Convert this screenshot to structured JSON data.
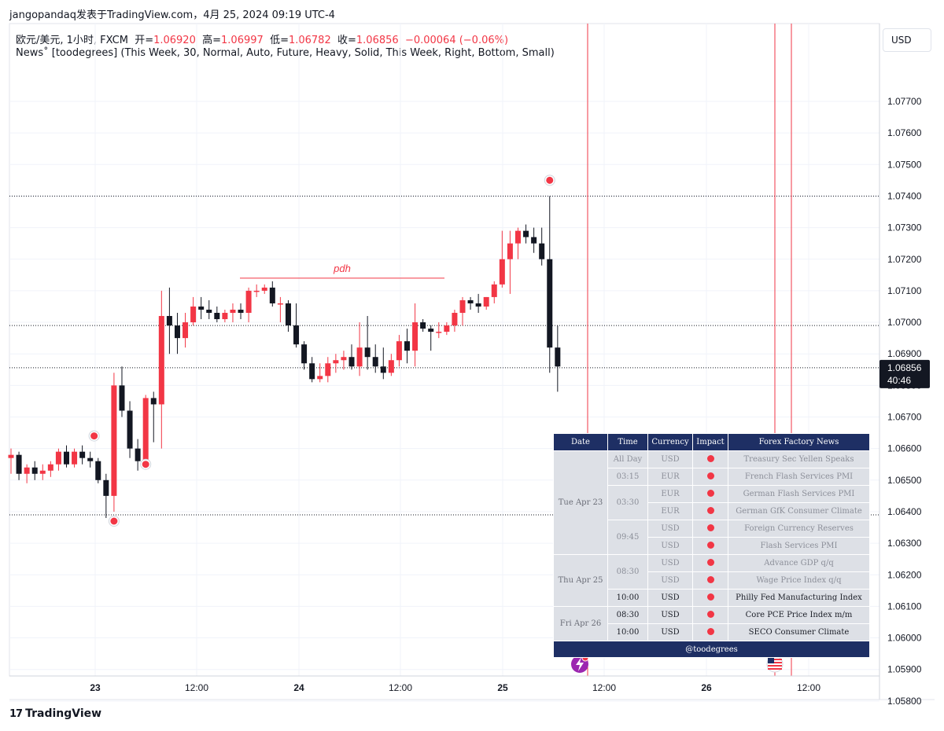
{
  "header": {
    "publisher_line": "jangopandaq发表于TradingView.com，4月 25, 2024 09:19 UTC-4"
  },
  "legend": {
    "symbol": "欧元/美元, 1小时, FXCM",
    "open_label": "开=",
    "open": "1.06920",
    "high_label": "高=",
    "high": "1.06997",
    "low_label": "低=",
    "low": "1.06782",
    "close_label": "收=",
    "close": "1.06856",
    "change": "−0.00064 (−0.06%)",
    "indicator": "News˚ [toodegrees] (This Week, 30, Normal, Auto, Future, Heavy, Solid, This Week, Right, Bottom, Small)"
  },
  "currency_button": "USD",
  "price_tag": {
    "price": "1.06856",
    "countdown": "40:46"
  },
  "annotation": {
    "pdh_label": "pdh"
  },
  "colors": {
    "up": "#f23645",
    "down": "#131722",
    "event_line": "#f23645",
    "table_header": "#1e2f64",
    "table_cell": "#dde0e6"
  },
  "chart_data": {
    "type": "candlestick",
    "title": "欧元/美元, 1小时, FXCM",
    "ylim": [
      1.058,
      1.078
    ],
    "y_ticks": [
      "1.07700",
      "1.07600",
      "1.07500",
      "1.07400",
      "1.07300",
      "1.07200",
      "1.07100",
      "1.07000",
      "1.06900",
      "1.06800",
      "1.06700",
      "1.06600",
      "1.06500",
      "1.06400",
      "1.06300",
      "1.06200",
      "1.06100",
      "1.06000",
      "1.05900",
      "1.05800"
    ],
    "x_ticks": [
      "23",
      "12:00",
      "24",
      "12:00",
      "25",
      "12:00",
      "26",
      "12:00"
    ],
    "candles": [
      {
        "o": 1.0657,
        "h": 1.066,
        "l": 1.0652,
        "c": 1.0658
      },
      {
        "o": 1.0658,
        "h": 1.0659,
        "l": 1.065,
        "c": 1.0652
      },
      {
        "o": 1.0652,
        "h": 1.0655,
        "l": 1.0649,
        "c": 1.0654
      },
      {
        "o": 1.0654,
        "h": 1.0656,
        "l": 1.065,
        "c": 1.0652
      },
      {
        "o": 1.0652,
        "h": 1.0655,
        "l": 1.065,
        "c": 1.0653
      },
      {
        "o": 1.0653,
        "h": 1.0656,
        "l": 1.0651,
        "c": 1.0655
      },
      {
        "o": 1.0655,
        "h": 1.066,
        "l": 1.0653,
        "c": 1.0659
      },
      {
        "o": 1.0659,
        "h": 1.0661,
        "l": 1.0654,
        "c": 1.0655
      },
      {
        "o": 1.0655,
        "h": 1.066,
        "l": 1.0654,
        "c": 1.0659
      },
      {
        "o": 1.0659,
        "h": 1.0661,
        "l": 1.0655,
        "c": 1.0657
      },
      {
        "o": 1.0657,
        "h": 1.0659,
        "l": 1.0654,
        "c": 1.0656
      },
      {
        "o": 1.0656,
        "h": 1.0657,
        "l": 1.0649,
        "c": 1.065
      },
      {
        "o": 1.065,
        "h": 1.0652,
        "l": 1.0638,
        "c": 1.0645
      },
      {
        "o": 1.0645,
        "h": 1.0684,
        "l": 1.064,
        "c": 1.068
      },
      {
        "o": 1.068,
        "h": 1.0686,
        "l": 1.067,
        "c": 1.0672
      },
      {
        "o": 1.0672,
        "h": 1.0675,
        "l": 1.0657,
        "c": 1.066
      },
      {
        "o": 1.066,
        "h": 1.0663,
        "l": 1.0653,
        "c": 1.0656
      },
      {
        "o": 1.0656,
        "h": 1.0677,
        "l": 1.0654,
        "c": 1.0676
      },
      {
        "o": 1.0676,
        "h": 1.0678,
        "l": 1.0662,
        "c": 1.0674
      },
      {
        "o": 1.0674,
        "h": 1.071,
        "l": 1.066,
        "c": 1.0702
      },
      {
        "o": 1.0702,
        "h": 1.0711,
        "l": 1.069,
        "c": 1.0699
      },
      {
        "o": 1.0699,
        "h": 1.0703,
        "l": 1.069,
        "c": 1.0695
      },
      {
        "o": 1.0695,
        "h": 1.0703,
        "l": 1.0692,
        "c": 1.07
      },
      {
        "o": 1.07,
        "h": 1.0708,
        "l": 1.0699,
        "c": 1.0705
      },
      {
        "o": 1.0705,
        "h": 1.0708,
        "l": 1.0701,
        "c": 1.0704
      },
      {
        "o": 1.0704,
        "h": 1.0707,
        "l": 1.0701,
        "c": 1.0703
      },
      {
        "o": 1.0703,
        "h": 1.0705,
        "l": 1.07,
        "c": 1.0701
      },
      {
        "o": 1.0701,
        "h": 1.0704,
        "l": 1.07,
        "c": 1.0703
      },
      {
        "o": 1.0703,
        "h": 1.0706,
        "l": 1.07,
        "c": 1.0704
      },
      {
        "o": 1.0704,
        "h": 1.0706,
        "l": 1.0701,
        "c": 1.0703
      },
      {
        "o": 1.0703,
        "h": 1.0711,
        "l": 1.07,
        "c": 1.071
      },
      {
        "o": 1.071,
        "h": 1.0712,
        "l": 1.0708,
        "c": 1.071
      },
      {
        "o": 1.071,
        "h": 1.0712,
        "l": 1.0709,
        "c": 1.0711
      },
      {
        "o": 1.0711,
        "h": 1.0713,
        "l": 1.0705,
        "c": 1.0706
      },
      {
        "o": 1.0706,
        "h": 1.0708,
        "l": 1.07,
        "c": 1.0706
      },
      {
        "o": 1.0706,
        "h": 1.0707,
        "l": 1.0697,
        "c": 1.0699
      },
      {
        "o": 1.0699,
        "h": 1.0706,
        "l": 1.0692,
        "c": 1.0693
      },
      {
        "o": 1.0693,
        "h": 1.0694,
        "l": 1.0685,
        "c": 1.0687
      },
      {
        "o": 1.0687,
        "h": 1.0689,
        "l": 1.0681,
        "c": 1.0682
      },
      {
        "o": 1.0682,
        "h": 1.0687,
        "l": 1.0681,
        "c": 1.0683
      },
      {
        "o": 1.0683,
        "h": 1.0689,
        "l": 1.0681,
        "c": 1.0687
      },
      {
        "o": 1.0687,
        "h": 1.069,
        "l": 1.0684,
        "c": 1.0688
      },
      {
        "o": 1.0688,
        "h": 1.0691,
        "l": 1.0685,
        "c": 1.0689
      },
      {
        "o": 1.0689,
        "h": 1.0693,
        "l": 1.0685,
        "c": 1.0686
      },
      {
        "o": 1.0686,
        "h": 1.07,
        "l": 1.0683,
        "c": 1.0692
      },
      {
        "o": 1.0692,
        "h": 1.0702,
        "l": 1.0685,
        "c": 1.0689
      },
      {
        "o": 1.0689,
        "h": 1.0693,
        "l": 1.0684,
        "c": 1.0686
      },
      {
        "o": 1.0686,
        "h": 1.0692,
        "l": 1.0682,
        "c": 1.0684
      },
      {
        "o": 1.0684,
        "h": 1.069,
        "l": 1.0683,
        "c": 1.0688
      },
      {
        "o": 1.0688,
        "h": 1.0696,
        "l": 1.0686,
        "c": 1.0694
      },
      {
        "o": 1.0694,
        "h": 1.0698,
        "l": 1.0687,
        "c": 1.0691
      },
      {
        "o": 1.0691,
        "h": 1.0706,
        "l": 1.0686,
        "c": 1.07
      },
      {
        "o": 1.07,
        "h": 1.0701,
        "l": 1.0697,
        "c": 1.0698
      },
      {
        "o": 1.0698,
        "h": 1.0699,
        "l": 1.0691,
        "c": 1.0697
      },
      {
        "o": 1.0697,
        "h": 1.07,
        "l": 1.0695,
        "c": 1.0697
      },
      {
        "o": 1.0697,
        "h": 1.07,
        "l": 1.0696,
        "c": 1.0699
      },
      {
        "o": 1.0699,
        "h": 1.0704,
        "l": 1.0697,
        "c": 1.0703
      },
      {
        "o": 1.0703,
        "h": 1.0708,
        "l": 1.0699,
        "c": 1.0707
      },
      {
        "o": 1.0707,
        "h": 1.0708,
        "l": 1.0704,
        "c": 1.0706
      },
      {
        "o": 1.0706,
        "h": 1.0709,
        "l": 1.0703,
        "c": 1.0705
      },
      {
        "o": 1.0705,
        "h": 1.0708,
        "l": 1.0704,
        "c": 1.0708
      },
      {
        "o": 1.0708,
        "h": 1.0713,
        "l": 1.0706,
        "c": 1.0712
      },
      {
        "o": 1.0712,
        "h": 1.0729,
        "l": 1.0711,
        "c": 1.072
      },
      {
        "o": 1.072,
        "h": 1.0729,
        "l": 1.0709,
        "c": 1.0725
      },
      {
        "o": 1.0725,
        "h": 1.073,
        "l": 1.072,
        "c": 1.0729
      },
      {
        "o": 1.0729,
        "h": 1.0731,
        "l": 1.0725,
        "c": 1.0727
      },
      {
        "o": 1.0727,
        "h": 1.073,
        "l": 1.0722,
        "c": 1.0725
      },
      {
        "o": 1.0725,
        "h": 1.073,
        "l": 1.0718,
        "c": 1.072
      },
      {
        "o": 1.072,
        "h": 1.074,
        "l": 1.0684,
        "c": 1.0692
      },
      {
        "o": 1.0692,
        "h": 1.0699,
        "l": 1.0678,
        "c": 1.0686
      }
    ],
    "levels": [
      1.074,
      1.0699,
      1.06856,
      1.0639
    ],
    "pdh_level": 1.0714,
    "markers": [
      {
        "index": 13,
        "price": 1.0637
      },
      {
        "index": 9,
        "price": 1.0664
      },
      {
        "index": 17,
        "price": 1.0655
      },
      {
        "index": 68,
        "price": 1.0745
      }
    ]
  },
  "news_table": {
    "headers": [
      "Date",
      "Time",
      "Currency",
      "Impact",
      "Forex Factory News"
    ],
    "days": [
      {
        "date": "Tue Apr 23",
        "rows": [
          {
            "time": "All Day",
            "currency": "USD",
            "news": "Treasury Sec Yellen Speaks"
          },
          {
            "time": "03:15",
            "currency": "EUR",
            "news": "French Flash Services PMI"
          },
          {
            "time": "03:30",
            "currency": "EUR",
            "news": "German Flash Services PMI"
          },
          {
            "time": "",
            "currency": "EUR",
            "news": "German GfK Consumer Climate"
          },
          {
            "time": "09:45",
            "currency": "USD",
            "news": "Foreign Currency Reserves"
          },
          {
            "time": "",
            "currency": "USD",
            "news": "Flash Services PMI"
          }
        ]
      },
      {
        "date": "Thu Apr 25",
        "rows": [
          {
            "time": "08:30",
            "currency": "USD",
            "news": "Advance GDP q/q"
          },
          {
            "time": "",
            "currency": "USD",
            "news": "Wage Price Index q/q"
          },
          {
            "time": "10:00",
            "currency": "USD",
            "news": "Philly Fed Manufacturing Index"
          }
        ]
      },
      {
        "date": "Fri Apr 26",
        "rows": [
          {
            "time": "08:30",
            "currency": "USD",
            "news": "Core PCE Price Index m/m"
          },
          {
            "time": "10:00",
            "currency": "USD",
            "news": "SECO Consumer Climate"
          }
        ]
      }
    ],
    "footer": "@toodegrees"
  },
  "footer": {
    "brand": "TradingView",
    "brand_mark": "17"
  }
}
